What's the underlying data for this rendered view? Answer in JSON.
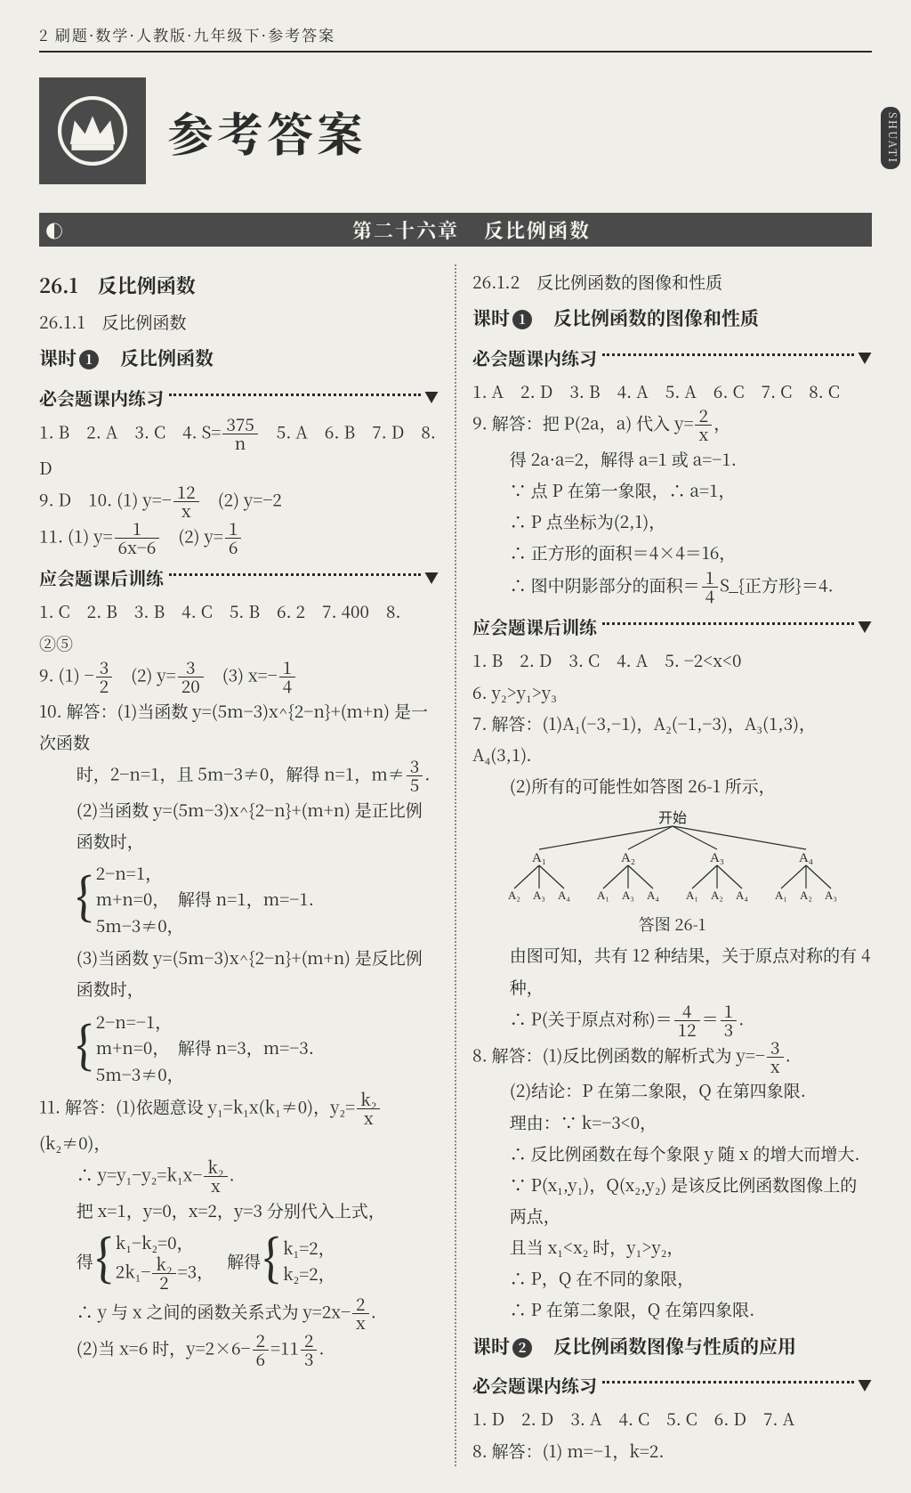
{
  "page": {
    "running_head": "2 刷题·数学·人教版·九年级下·参考答案",
    "side_tab": "SHUATI",
    "title": "参考答案"
  },
  "chapter": {
    "badge": "◐",
    "num": "第二十六章",
    "name": "反比例函数"
  },
  "left": {
    "sec1": "26.1　反比例函数",
    "sec11": "26.1.1　反比例函数",
    "lesson1": "课时",
    "lesson1_num": "1",
    "lesson1_title": "反比例函数",
    "head_in": "必会题课内练习",
    "head_after": "应会题课后训练",
    "l1": "1. B　2. A　3. C　4. S=",
    "l1b": "　5. A　6. B　7. D　8. D",
    "frac375_n": "375",
    "frac375_d": "n",
    "l9": "9. D　10. (1) y=−",
    "l9b": "　(2) y=−2",
    "frac12_n": "12",
    "frac12_d": "x",
    "l11": "11. (1) y=",
    "l11b": "　(2) y=",
    "f_1_6x6_n": "1",
    "f_1_6x6_d": "6x−6",
    "f_1_6_n": "1",
    "f_1_6_d": "6",
    "after_l1": "1. C　2. B　3. B　4. C　5. B　6. 2　7. 400　8. ②⑤",
    "after_l9a": "9. (1) −",
    "after_l9b": "　(2) y=",
    "after_l9c": "　(3)  x=−",
    "f32n": "3",
    "f32d": "2",
    "f320n": "3",
    "f320d": "20",
    "f14n": "1",
    "f14d": "4",
    "q10_intro": "10. 解答：(1)当函数 y=(5m−3)x^{2−n}+(m+n) 是一次函数",
    "q10_a": "时，2−n=1，且 5m−3≠0，解得 n=1，m≠",
    "f35n": "3",
    "f35d": "5",
    "q10_b": "(2)当函数 y=(5m−3)x^{2−n}+(m+n) 是正比例函数时，",
    "q10_sys1_1": "2−n=1，",
    "q10_sys1_2": "m+n=0，　解得 n=1，m=−1.",
    "q10_sys1_3": "5m−3≠0，",
    "q10_c": "(3)当函数 y=(5m−3)x^{2−n}+(m+n) 是反比例函数时，",
    "q10_sys2_1": "2−n=−1，",
    "q10_sys2_2": "m+n=0，　解得 n=3，m=−3.",
    "q10_sys2_3": "5m−3≠0，",
    "q11_a": "11. 解答：(1)依题意设 y₁=k₁x(k₁≠0)，y₂=",
    "q11_a2": "(k₂≠0)，",
    "fk2x_n": "k₂",
    "fk2x_d": "x",
    "q11_b": "∴ y=y₁−y₂=k₁x−",
    "q11_c": "把 x=1，y=0，x=2，y=3 分别代入上式，",
    "q11_get": "得",
    "q11_sysL1": "k₁−k₂=0，",
    "q11_sysL2_pre": "2k₁−",
    "q11_sysL2_post": "=3，",
    "fk22_n": "k₂",
    "fk22_d": "2",
    "q11_solve": "解得",
    "q11_sysR1": "k₁=2，",
    "q11_sysR2": "k₂=2，",
    "q11_d": "∴ y 与 x 之间的函数关系式为 y=2x−",
    "f2x_n": "2",
    "f2x_d": "x",
    "q11_e_a": "(2)当 x=6 时，y=2×6−",
    "q11_e_b": "=11",
    "f26_n": "2",
    "f26_d": "6",
    "f23_n": "2",
    "f23_d": "3"
  },
  "right": {
    "sec12": "26.1.2　反比例函数的图像和性质",
    "lesson1": "课时",
    "lesson1_num": "1",
    "lesson1_title": "反比例函数的图像和性质",
    "head_in": "必会题课内练习",
    "head_after": "应会题课后训练",
    "r_l1": "1. A　2. D　3. B　4. A　5. A　6. C　7. C　8. C",
    "r_q9a": "9. 解答：把 P(2a，a) 代入 y=",
    "f2x_n": "2",
    "f2x_d": "x",
    "r_q9b": "得 2a·a=2，解得 a=1 或 a=−1.",
    "r_q9c": "∵ 点 P 在第一象限，∴ a=1，",
    "r_q9d": "∴ P 点坐标为(2,1)，",
    "r_q9e": "∴ 正方形的面积＝4×4＝16，",
    "r_q9f_a": "∴ 图中阴影部分的面积＝",
    "r_q9f_b": "S_{正方形}＝4.",
    "f14n": "1",
    "f14d": "4",
    "after_l1": "1. B　2. D　3. C　4. A　5. −2<x<0",
    "after_l6": "6. y₂>y₁>y₃",
    "after_q7a": "7. 解答：(1)A₁(−3,−1)，A₂(−1,−3)，A₃(1,3)，A₄(3,1).",
    "after_q7b": "(2)所有的可能性如答图 26-1 所示，",
    "tree_top": "开始",
    "tree_nodes": [
      "A₁",
      "A₂",
      "A₃",
      "A₄"
    ],
    "tree_children": [
      [
        "A₂",
        "A₃",
        "A₄"
      ],
      [
        "A₁",
        "A₃",
        "A₄"
      ],
      [
        "A₁",
        "A₂",
        "A₄"
      ],
      [
        "A₁",
        "A₂",
        "A₃"
      ]
    ],
    "tree_caption": "答图 26-1",
    "after_q7c": "由图可知，共有 12 种结果，关于原点对称的有 4 种，",
    "after_q7d": "∴ P(关于原点对称)＝",
    "f412_n": "4",
    "f412_d": "12",
    "f13_n": "1",
    "f13_d": "3",
    "q8a": "8. 解答：(1)反比例函数的解析式为 y=−",
    "f3x_n": "3",
    "f3x_d": "x",
    "q8b": "(2)结论：P 在第二象限，Q 在第四象限.",
    "q8c": "理由：∵ k=−3<0，",
    "q8d": "∴ 反比例函数在每个象限 y 随 x 的增大而增大.",
    "q8e": "∵ P(x₁,y₁)，Q(x₂,y₂) 是该反比例函数图像上的两点，",
    "q8f": "且当 x₁<x₂ 时，y₁>y₂，",
    "q8g": "∴ P，Q 在不同的象限，",
    "q8h": "∴ P 在第二象限，Q 在第四象限.",
    "lesson2": "课时",
    "lesson2_num": "2",
    "lesson2_title": "反比例函数图像与性质的应用",
    "head_in2": "必会题课内练习",
    "l2_l1": "1. D　2. D　3. A　4. C　5. C　6. D　7. A",
    "l2_q8": "8. 解答：(1) m=−1，k=2."
  },
  "style": {
    "ink": "#2a2a2a",
    "paper": "#efeee9",
    "dark": "#3a3a3a",
    "title_fontsize": 52,
    "body_fontsize": 19
  }
}
